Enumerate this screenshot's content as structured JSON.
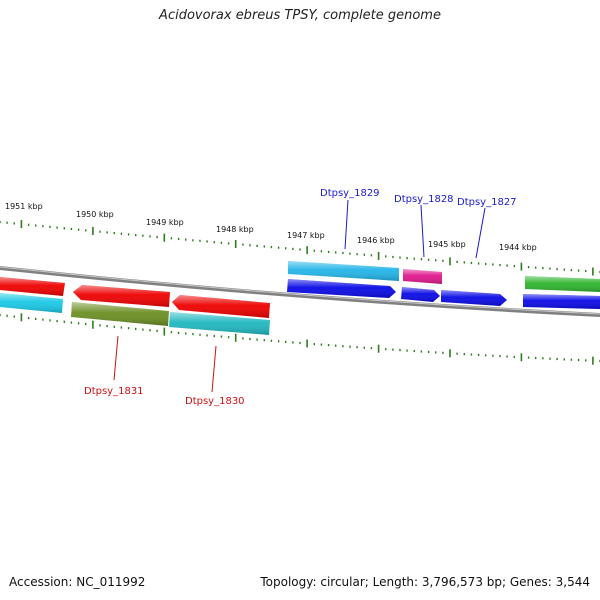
{
  "title": "Acidovorax ebreus TPSY, complete genome",
  "footer": {
    "accession": "Accession: NC_011992",
    "topology": "Topology: circular; Length: 3,796,573 bp; Genes: 3,544"
  },
  "ticks": {
    "labels": [
      "1951 kbp",
      "1950 kbp",
      "1949 kbp",
      "1948 kbp",
      "1947 kbp",
      "1946 kbp",
      "1945 kbp",
      "1944 kbp"
    ],
    "color": "#2e7d1e"
  },
  "genes": {
    "labels": [
      {
        "name": "Dtpsy_1829",
        "color": "#1a1acc"
      },
      {
        "name": "Dtpsy_1828",
        "color": "#1a1acc"
      },
      {
        "name": "Dtpsy_1827",
        "color": "#1a1acc"
      },
      {
        "name": "Dtpsy_1831",
        "color": "#cc1111"
      },
      {
        "name": "Dtpsy_1830",
        "color": "#cc1111"
      }
    ]
  },
  "colors": {
    "red": "#ee0000",
    "cyan": "#19c8e6",
    "sky": "#22b4e8",
    "olive": "#6b8e23",
    "teal": "#20b8c0",
    "magenta": "#e0188c",
    "blue": "#0a0ae6",
    "green": "#2fb52f",
    "backbone": "#808080"
  }
}
